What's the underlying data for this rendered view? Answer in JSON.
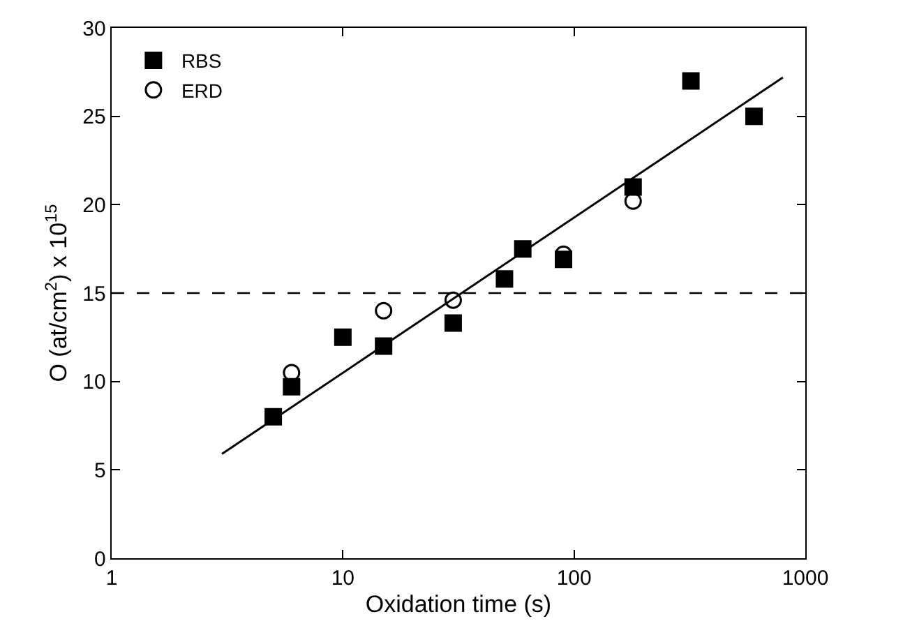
{
  "chart_data": {
    "type": "scatter",
    "xlabel": "Oxidation time (s)",
    "ylabel": "O (at/cm$^{2}$) x 10$^{15}$",
    "log": "x",
    "xlim": [
      1,
      1000
    ],
    "xticks": [
      1,
      10,
      100,
      1000
    ],
    "ylim": [
      0,
      30
    ],
    "yticks": [
      0,
      5,
      10,
      15,
      20,
      25,
      30
    ],
    "legend": "top left",
    "series": [
      {
        "name": "RBS",
        "color": "#000000",
        "marker": "square",
        "x": [
          5,
          6,
          10,
          15,
          30,
          50,
          60,
          90,
          180,
          320,
          600
        ],
        "values": [
          8,
          9.7,
          12.5,
          12,
          13.3,
          15.8,
          17.5,
          16.9,
          21,
          27,
          25
        ]
      },
      {
        "name": "ERD",
        "color": "#000000",
        "marker": "circle",
        "x": [
          6,
          15,
          30,
          90,
          180
        ],
        "values": [
          10.5,
          14,
          14.6,
          17.2,
          20.2
        ]
      },
      {
        "type": "line",
        "color": "#000000",
        "line_style": "solid",
        "x": [
          3,
          800
        ],
        "values": [
          5.9,
          27.2
        ]
      }
    ],
    "ref_lines": [
      {
        "axis": "y",
        "value": 15,
        "color": "#000000",
        "line_style": "dashed"
      }
    ]
  }
}
